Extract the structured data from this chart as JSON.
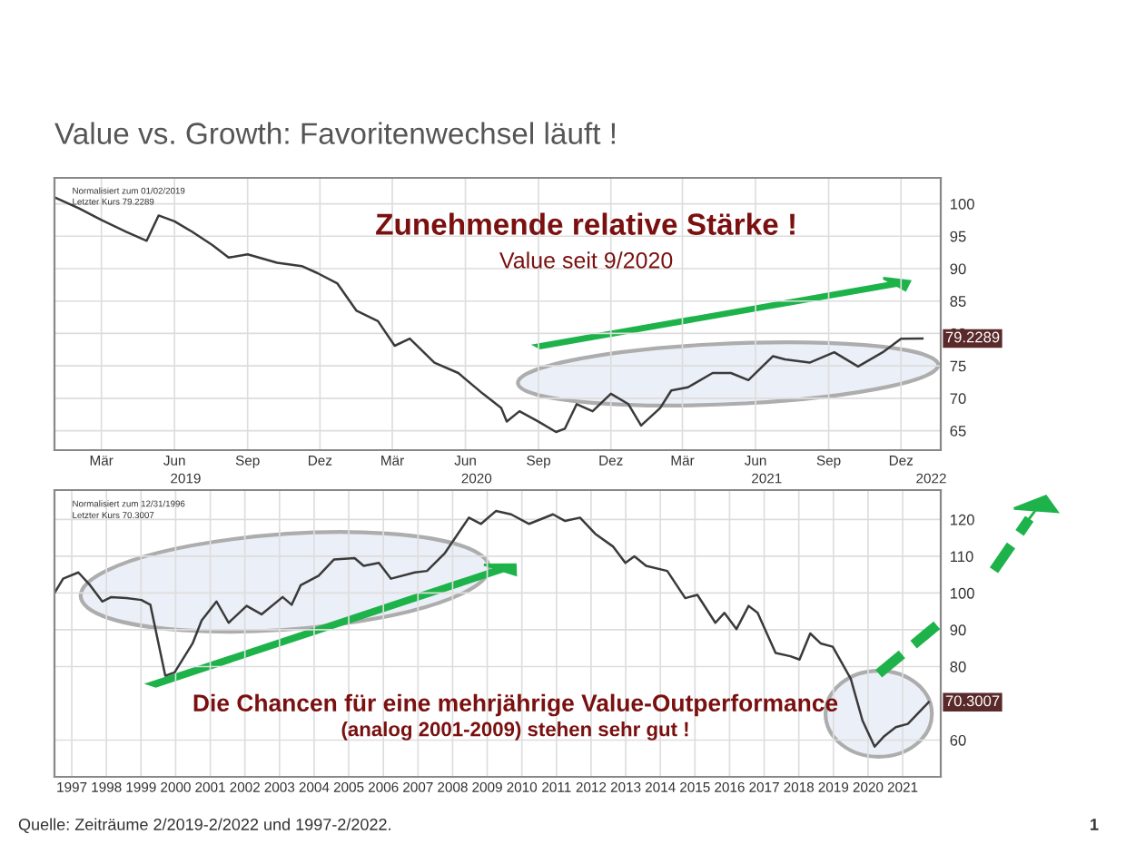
{
  "chart_data": [
    {
      "type": "line",
      "title": "Value vs. Growth: Favoritenwechsel läuft !",
      "annotations": [
        "Zunehmende relative Stärke !",
        "Value seit 9/2020",
        "Normalisiert zum 01/02/2019",
        "Letzter Kurs 79.2289"
      ],
      "x": [
        "2019-01-01",
        "2019-02-01",
        "2019-03-01",
        "2019-04-01",
        "2019-04-27",
        "2019-05-12",
        "2019-06-01",
        "2019-06-23",
        "2019-07-19",
        "2019-08-08",
        "2019-09-01",
        "2019-10-08",
        "2019-11-08",
        "2019-11-28",
        "2019-12-23",
        "2020-01-16",
        "2020-02-12",
        "2020-03-04",
        "2020-03-23",
        "2020-04-23",
        "2020-05-23",
        "2020-06-23",
        "2020-07-16",
        "2020-07-23",
        "2020-08-08",
        "2020-09-01",
        "2020-09-23",
        "2020-10-04",
        "2020-10-19",
        "2020-11-08",
        "2020-12-01",
        "2020-12-23",
        "2021-01-08",
        "2021-02-01",
        "2021-02-15",
        "2021-03-08",
        "2021-04-08",
        "2021-05-01",
        "2021-05-23",
        "2021-06-23",
        "2021-07-08",
        "2021-08-08",
        "2021-09-08",
        "2021-10-08",
        "2021-11-08",
        "2021-12-01",
        "2021-12-28"
      ],
      "series": [
        {
          "color": "#3a3a3a",
          "values": [
            101,
            99.3,
            97.5,
            95.7,
            94.3,
            98.2,
            97.3,
            95.7,
            93.6,
            91.7,
            92.2,
            90.9,
            90.4,
            89.3,
            87.7,
            83.5,
            81.9,
            78.1,
            79.2,
            75.5,
            73.9,
            70.7,
            68.5,
            66.4,
            68.0,
            66.4,
            64.8,
            65.3,
            69.1,
            68.0,
            70.7,
            69.1,
            65.8,
            68.5,
            71.2,
            71.7,
            73.9,
            73.9,
            72.8,
            76.5,
            76.0,
            75.5,
            77.1,
            74.9,
            77.1,
            79.2,
            79.2289
          ],
          "value_labels": [
            null,
            null,
            null,
            null,
            null,
            null,
            null,
            null,
            null,
            null,
            null,
            null,
            null,
            null,
            null,
            null,
            null,
            null,
            null,
            null,
            null,
            null,
            null,
            null,
            null,
            null,
            null,
            null,
            null,
            null,
            null,
            null,
            null,
            null,
            null,
            null,
            null,
            null,
            null,
            null,
            null,
            null,
            null,
            null,
            null,
            null,
            "79.2289"
          ]
        }
      ],
      "xlim": [
        "2019-01-01",
        "2022-01-20"
      ],
      "ylim": [
        62,
        104
      ],
      "xticks": [
        {
          "value": "2019-03-01",
          "label": "Mär"
        },
        {
          "value": "2019-06-01",
          "label": "Jun"
        },
        {
          "value": "2019-09-01",
          "label": "Sep"
        },
        {
          "value": "2019-12-01",
          "label": "Dez"
        },
        {
          "value": "2020-03-01",
          "label": "Mär"
        },
        {
          "value": "2020-06-01",
          "label": "Jun"
        },
        {
          "value": "2020-09-01",
          "label": "Sep"
        },
        {
          "value": "2020-12-01",
          "label": "Dez"
        },
        {
          "value": "2021-03-01",
          "label": "Mär"
        },
        {
          "value": "2021-06-01",
          "label": "Jun"
        },
        {
          "value": "2021-09-01",
          "label": "Sep"
        },
        {
          "value": "2021-12-01",
          "label": "Dez"
        }
      ],
      "x2lim": [
        "2019-01-01",
        "2022-01-20"
      ],
      "x2ticks": [
        {
          "value": "2019-06-15",
          "label": "2019"
        },
        {
          "value": "2020-06-15",
          "label": "2020"
        },
        {
          "value": "2021-06-15",
          "label": "2021"
        },
        {
          "value": "2022-01-08",
          "label": "2022"
        }
      ],
      "yticks": [
        65,
        70,
        75,
        80,
        85,
        90,
        95,
        100
      ],
      "grid": true
    },
    {
      "type": "line",
      "annotations": [
        "Die Chancen für eine mehrjährige Value-Outperformance",
        "(analog 2001-2009) stehen sehr gut !",
        "Normalisiert zum 12/31/1996",
        "Letzter Kurs 70.3007",
        "Quelle: Zeiträume 2/2019-2/2022 und 1997-2/2022.",
        "1"
      ],
      "x": [
        1997.0,
        1997.25,
        1997.69,
        1998.03,
        1998.38,
        1998.64,
        1999.08,
        1999.51,
        1999.77,
        2000.2,
        2000.47,
        2000.99,
        2001.25,
        2001.68,
        2002.03,
        2002.55,
        2002.98,
        2003.59,
        2003.85,
        2004.11,
        2004.63,
        2005.07,
        2005.67,
        2005.93,
        2006.37,
        2006.72,
        2007.41,
        2007.76,
        2008.28,
        2008.97,
        2009.32,
        2009.75,
        2010.19,
        2010.71,
        2011.4,
        2011.75,
        2012.18,
        2012.62,
        2013.14,
        2013.49,
        2013.75,
        2014.09,
        2014.7,
        2015.22,
        2015.57,
        2016.09,
        2016.35,
        2016.7,
        2017.05,
        2017.31,
        2017.83,
        2018.26,
        2018.52,
        2018.83,
        2019.13,
        2019.48,
        2020.0,
        2020.34,
        2020.69,
        2020.95,
        2021.3,
        2021.65,
        2022.25
      ],
      "series": [
        {
          "color": "#3a3a3a",
          "values": [
            100,
            103.9,
            105.6,
            102.1,
            97.7,
            98.9,
            98.6,
            98.1,
            96.8,
            77.5,
            78.4,
            86.3,
            92.5,
            97.7,
            91.9,
            96.5,
            94.2,
            98.9,
            96.8,
            102.1,
            104.7,
            109.1,
            109.5,
            107.4,
            108.2,
            103.9,
            105.6,
            106.0,
            110.9,
            120.5,
            118.8,
            122.3,
            121.4,
            118.8,
            121.4,
            119.6,
            120.5,
            116.1,
            112.6,
            108.2,
            110.0,
            107.4,
            106.0,
            98.6,
            99.5,
            91.9,
            94.6,
            90.2,
            96.5,
            94.6,
            83.7,
            82.8,
            81.9,
            89.0,
            86.3,
            85.4,
            76.7,
            65.3,
            58.2,
            60.9,
            63.5,
            64.4,
            70.3007
          ],
          "value_labels": [
            null,
            null,
            null,
            null,
            null,
            null,
            null,
            null,
            null,
            null,
            null,
            null,
            null,
            null,
            null,
            null,
            null,
            null,
            null,
            null,
            null,
            null,
            null,
            null,
            null,
            null,
            null,
            null,
            null,
            null,
            null,
            null,
            null,
            null,
            null,
            null,
            null,
            null,
            null,
            null,
            null,
            null,
            null,
            null,
            null,
            null,
            null,
            null,
            null,
            null,
            null,
            null,
            null,
            null,
            null,
            null,
            null,
            null,
            null,
            null,
            null,
            null,
            "70.3007"
          ]
        }
      ],
      "xlim": [
        1997.0,
        2022.6
      ],
      "ylim": [
        50,
        128
      ],
      "xticks": [
        {
          "value": 1997.5,
          "label": "1997"
        },
        {
          "value": 1998.5,
          "label": "1998"
        },
        {
          "value": 1999.5,
          "label": "1999"
        },
        {
          "value": 2000.5,
          "label": "2000"
        },
        {
          "value": 2001.5,
          "label": "2001"
        },
        {
          "value": 2002.5,
          "label": "2002"
        },
        {
          "value": 2003.5,
          "label": "2003"
        },
        {
          "value": 2004.5,
          "label": "2004"
        },
        {
          "value": 2005.5,
          "label": "2005"
        },
        {
          "value": 2006.5,
          "label": "2006"
        },
        {
          "value": 2007.5,
          "label": "2007"
        },
        {
          "value": 2008.5,
          "label": "2008"
        },
        {
          "value": 2009.5,
          "label": "2009"
        },
        {
          "value": 2010.5,
          "label": "2010"
        },
        {
          "value": 2011.5,
          "label": "2011"
        },
        {
          "value": 2012.5,
          "label": "2012"
        },
        {
          "value": 2013.5,
          "label": "2013"
        },
        {
          "value": 2014.5,
          "label": "2014"
        },
        {
          "value": 2015.5,
          "label": "2015"
        },
        {
          "value": 2016.5,
          "label": "2016"
        },
        {
          "value": 2017.5,
          "label": "2017"
        },
        {
          "value": 2018.5,
          "label": "2018"
        },
        {
          "value": 2019.5,
          "label": "2019"
        },
        {
          "value": 2020.5,
          "label": "2020"
        },
        {
          "value": 2021.5,
          "label": "2021"
        }
      ],
      "yticks": [
        60,
        80,
        90,
        100,
        110,
        120
      ],
      "grid": true
    }
  ]
}
